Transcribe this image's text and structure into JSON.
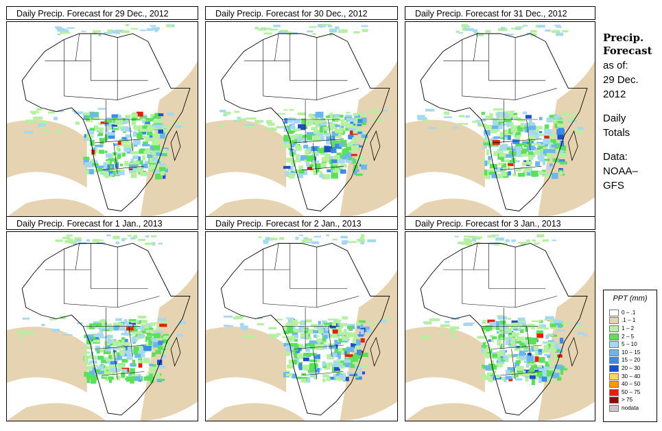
{
  "panels": [
    {
      "title": "Daily Precip. Forecast for  29 Dec., 2012"
    },
    {
      "title": "Daily Precip. Forecast for  30 Dec., 2012"
    },
    {
      "title": "Daily Precip. Forecast for  31 Dec., 2012"
    },
    {
      "title": "Daily Precip. Forecast for  1 Jan., 2013"
    },
    {
      "title": "Daily Precip. Forecast for  2 Jan., 2013"
    },
    {
      "title": "Daily Precip. Forecast for  3 Jan., 2013"
    }
  ],
  "sidebar": {
    "title_line1": "Precip.",
    "title_line2": "Forecast",
    "as_of_label": "as of:",
    "date_line1": "29 Dec.",
    "date_line2": "2012",
    "totals_line1": "Daily",
    "totals_line2": "Totals",
    "data_line1": "Data:",
    "data_line2": "NOAA–",
    "data_line3": "GFS"
  },
  "legend": {
    "title": "PPT (mm)",
    "items": [
      {
        "label": "0 – .1",
        "color": "#ffffff"
      },
      {
        "label": ".1 – 1",
        "color": "#e6d3b1"
      },
      {
        "label": "1 – 2",
        "color": "#b4f0a0"
      },
      {
        "label": "2 – 5",
        "color": "#5ae05a"
      },
      {
        "label": "5 – 10",
        "color": "#a6d8f0"
      },
      {
        "label": "10 – 15",
        "color": "#6cb6ee"
      },
      {
        "label": "15 – 20",
        "color": "#3c8ce6"
      },
      {
        "label": "20 – 30",
        "color": "#1e4fc8"
      },
      {
        "label": "30 – 40",
        "color": "#ffd75a"
      },
      {
        "label": "40 – 50",
        "color": "#ff9600"
      },
      {
        "label": "50 – 75",
        "color": "#e81e0a"
      },
      {
        "label": "> 75",
        "color": "#8c0a0a"
      },
      {
        "label": "nodata",
        "color": "#c8c8c8"
      }
    ]
  }
}
